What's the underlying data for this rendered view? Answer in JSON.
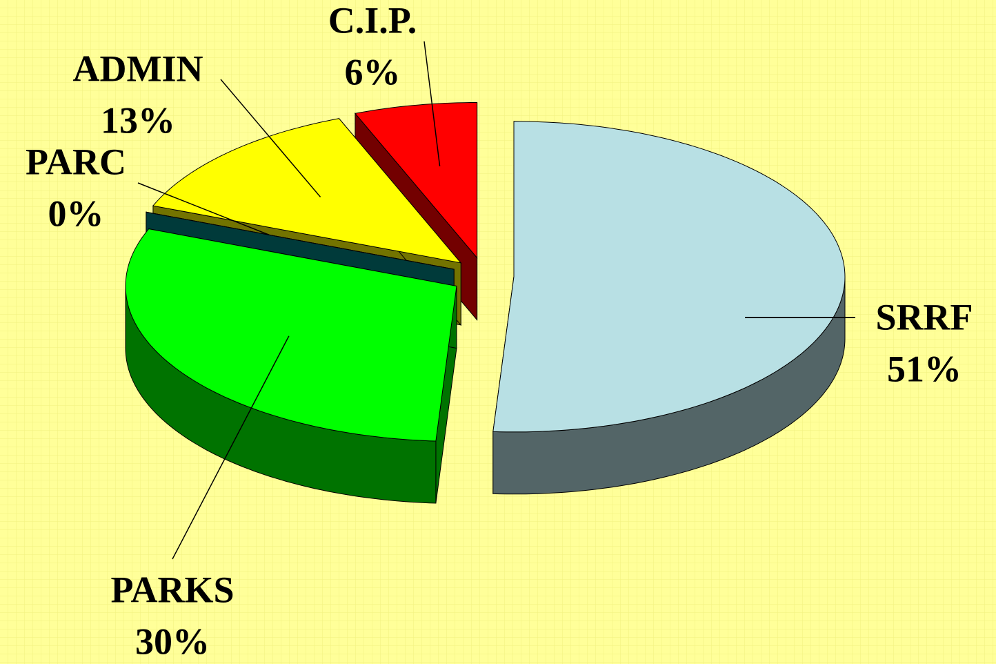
{
  "chart_data": {
    "type": "pie",
    "categories": [
      "SRRF",
      "PARKS",
      "PARC",
      "ADMIN",
      "C.I.P."
    ],
    "values": [
      51,
      30,
      0,
      13,
      6
    ],
    "value_labels": [
      "51%",
      "30%",
      "0%",
      "13%",
      "6%"
    ],
    "colors": [
      "#b8e0e4",
      "#00ff00",
      "#008080",
      "#ffff00",
      "#ff0000"
    ]
  }
}
